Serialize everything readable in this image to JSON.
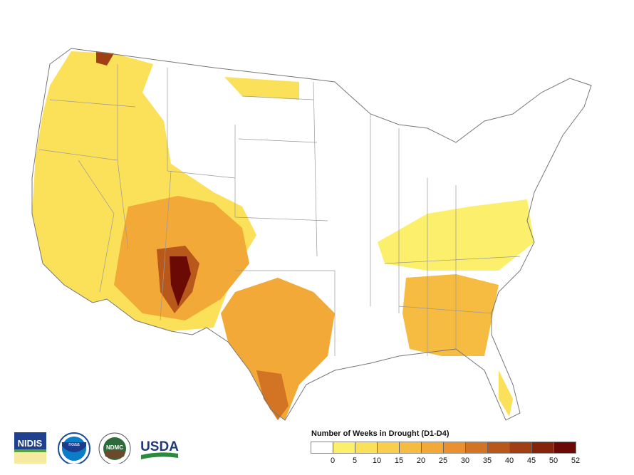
{
  "legend": {
    "title": "Number of Weeks in Drought (D1-D4)",
    "colors": [
      "#ffffff",
      "#fcef6c",
      "#fbe059",
      "#f9ce4d",
      "#f6bc42",
      "#f2a937",
      "#e99130",
      "#d37425",
      "#b9581b",
      "#9f3f13",
      "#85240b",
      "#6b0a05"
    ],
    "ticks": [
      "0",
      "5",
      "10",
      "15",
      "20",
      "25",
      "30",
      "35",
      "40",
      "45",
      "50",
      "52"
    ]
  },
  "logos": [
    {
      "name": "NIDIS",
      "text": "NIDIS"
    },
    {
      "name": "NOAA",
      "text": "NOAA"
    },
    {
      "name": "NDMC",
      "text": "NDMC"
    },
    {
      "name": "USDA",
      "text": "USDA"
    }
  ]
}
